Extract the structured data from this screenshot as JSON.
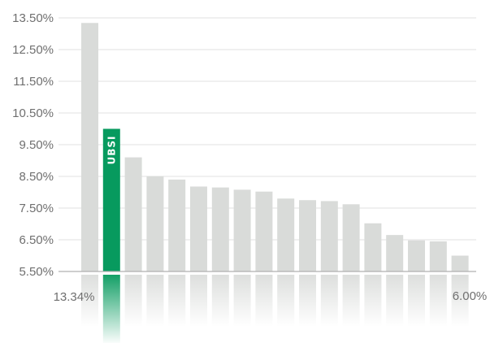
{
  "chart_data": {
    "type": "bar",
    "title": "",
    "xlabel": "",
    "ylabel": "",
    "yticks": [
      "13.50%",
      "12.50%",
      "11.50%",
      "10.50%",
      "9.50%",
      "8.50%",
      "7.50%",
      "6.50%",
      "5.50%"
    ],
    "ylim": [
      5.5,
      13.5
    ],
    "grid": true,
    "values": [
      13.34,
      10.0,
      9.1,
      8.5,
      8.4,
      8.18,
      8.15,
      8.08,
      8.02,
      7.8,
      7.75,
      7.72,
      7.62,
      7.02,
      6.65,
      6.48,
      6.45,
      6.0
    ],
    "highlight_index": 1,
    "highlight_label": "UBSI",
    "first_label": "13.34%",
    "last_label": "6.00%",
    "colors": {
      "bar": "#d9dbd9",
      "highlight": "#079a5e",
      "grid": "#e2e2e2",
      "axis": "#b0b0b0",
      "text": "#6f6f6f"
    }
  }
}
